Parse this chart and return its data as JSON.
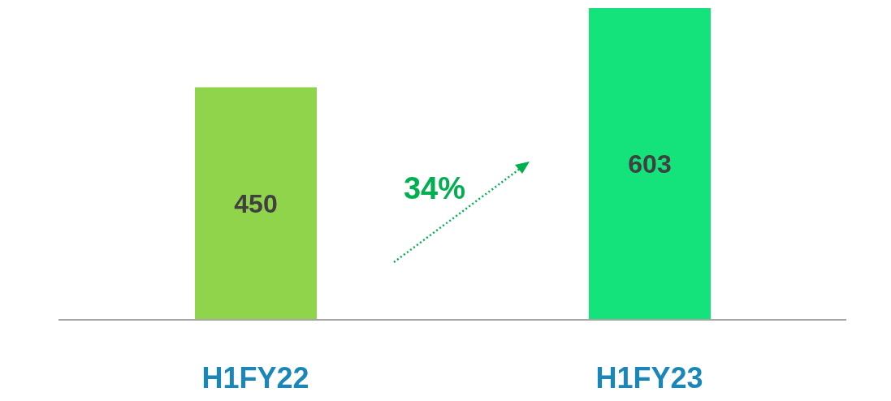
{
  "chart_data": {
    "type": "bar",
    "categories": [
      "H1FY22",
      "H1FY23"
    ],
    "values": [
      450,
      603
    ],
    "colors": [
      "#8fd44a",
      "#14e27a"
    ],
    "data_labels": true,
    "annotations": [
      "34%"
    ]
  }
}
